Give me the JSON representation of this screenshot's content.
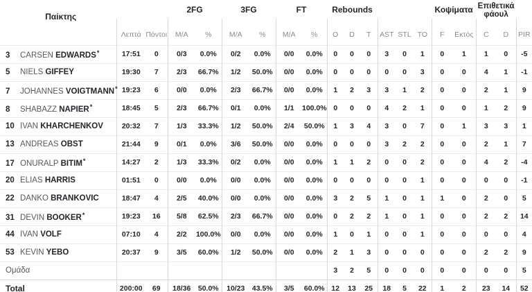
{
  "colors": {
    "background": "#ffffff",
    "text_primary": "#232529",
    "text_secondary": "#85888c",
    "divider": "#d7d8da",
    "row_separator": "#ececee"
  },
  "table": {
    "player_header": "Παίκτης",
    "group_headers": {
      "fg2": "2FG",
      "fg3": "3FG",
      "ft": "FT",
      "rebounds": "Rebounds",
      "blocks": "Κοψίματα",
      "offensive_fouls": "Επιθετικά φάουλ"
    },
    "stat_columns": [
      "Λεπτά",
      "Πόντοι",
      "M/A",
      "%",
      "M/A",
      "%",
      "M/A",
      "%",
      "O",
      "D",
      "T",
      "AST",
      "STL",
      "TO",
      "F",
      "Εκτός",
      "C",
      "D",
      "PIR"
    ],
    "players": [
      {
        "number": "3",
        "first_name": "CARSEN",
        "last_name": "EDWARDS",
        "starter": true,
        "stats": [
          "17:51",
          "0",
          "0/3",
          "0.0%",
          "0/2",
          "0.0%",
          "0/0",
          "0.0%",
          "0",
          "0",
          "0",
          "3",
          "0",
          "1",
          "0",
          "1",
          "1",
          "0",
          "-5"
        ]
      },
      {
        "number": "5",
        "first_name": "NIELS",
        "last_name": "GIFFEY",
        "starter": false,
        "stats": [
          "19:30",
          "7",
          "2/3",
          "66.7%",
          "1/2",
          "50.0%",
          "0/0",
          "0.0%",
          "0",
          "0",
          "0",
          "0",
          "0",
          "3",
          "0",
          "0",
          "4",
          "1",
          "-1"
        ]
      },
      {
        "number": "7",
        "first_name": "JOHANNES",
        "last_name": "VOIGTMANN",
        "starter": true,
        "stats": [
          "19:23",
          "6",
          "0/0",
          "0.0%",
          "2/3",
          "66.7%",
          "0/0",
          "0.0%",
          "1",
          "2",
          "3",
          "3",
          "1",
          "2",
          "0",
          "0",
          "2",
          "1",
          "9"
        ]
      },
      {
        "number": "8",
        "first_name": "SHABAZZ",
        "last_name": "NAPIER",
        "starter": true,
        "stats": [
          "18:45",
          "5",
          "2/3",
          "66.7%",
          "0/1",
          "0.0%",
          "1/1",
          "100.0%",
          "0",
          "0",
          "0",
          "4",
          "2",
          "1",
          "0",
          "0",
          "1",
          "2",
          "9"
        ]
      },
      {
        "number": "10",
        "first_name": "IVAN",
        "last_name": "KHARCHENKOV",
        "starter": false,
        "stats": [
          "20:32",
          "7",
          "1/3",
          "33.3%",
          "1/2",
          "50.0%",
          "2/4",
          "50.0%",
          "1",
          "3",
          "4",
          "3",
          "0",
          "7",
          "0",
          "1",
          "3",
          "3",
          "1"
        ]
      },
      {
        "number": "13",
        "first_name": "ANDREAS",
        "last_name": "OBST",
        "starter": false,
        "stats": [
          "21:44",
          "9",
          "0/1",
          "0.0%",
          "3/6",
          "50.0%",
          "0/0",
          "0.0%",
          "0",
          "0",
          "0",
          "3",
          "2",
          "2",
          "0",
          "0",
          "2",
          "1",
          "7"
        ]
      },
      {
        "number": "17",
        "first_name": "ONURALP",
        "last_name": "BITIM",
        "starter": true,
        "stats": [
          "14:27",
          "2",
          "1/3",
          "33.3%",
          "0/2",
          "0.0%",
          "0/0",
          "0.0%",
          "1",
          "1",
          "2",
          "0",
          "0",
          "2",
          "0",
          "0",
          "4",
          "2",
          "-4"
        ]
      },
      {
        "number": "20",
        "first_name": "ELIAS",
        "last_name": "HARRIS",
        "starter": false,
        "stats": [
          "01:51",
          "0",
          "0/0",
          "0.0%",
          "0/0",
          "0.0%",
          "0/0",
          "0.0%",
          "0",
          "0",
          "0",
          "0",
          "0",
          "1",
          "0",
          "0",
          "0",
          "0",
          "-1"
        ]
      },
      {
        "number": "22",
        "first_name": "DANKO",
        "last_name": "BRANKOVIC",
        "starter": false,
        "stats": [
          "18:47",
          "4",
          "2/5",
          "40.0%",
          "0/0",
          "0.0%",
          "0/0",
          "0.0%",
          "3",
          "2",
          "5",
          "1",
          "0",
          "1",
          "1",
          "0",
          "2",
          "0",
          "5"
        ]
      },
      {
        "number": "31",
        "first_name": "DEVIN",
        "last_name": "BOOKER",
        "starter": true,
        "stats": [
          "19:23",
          "16",
          "5/8",
          "62.5%",
          "2/3",
          "66.7%",
          "0/0",
          "0.0%",
          "0",
          "2",
          "2",
          "1",
          "0",
          "1",
          "0",
          "0",
          "2",
          "2",
          "14"
        ]
      },
      {
        "number": "44",
        "first_name": "IVAN",
        "last_name": "VOLF",
        "starter": false,
        "stats": [
          "07:10",
          "4",
          "2/2",
          "100.0%",
          "0/0",
          "0.0%",
          "0/0",
          "0.0%",
          "1",
          "0",
          "1",
          "0",
          "0",
          "1",
          "0",
          "0",
          "0",
          "0",
          "4"
        ]
      },
      {
        "number": "53",
        "first_name": "KEVIN",
        "last_name": "YEBO",
        "starter": false,
        "stats": [
          "20:37",
          "9",
          "3/5",
          "60.0%",
          "1/2",
          "50.0%",
          "0/0",
          "0.0%",
          "2",
          "1",
          "3",
          "0",
          "0",
          "0",
          "0",
          "0",
          "2",
          "2",
          "9"
        ]
      }
    ],
    "team_row": {
      "label": "Ομάδα",
      "stats": [
        "",
        "",
        "",
        "",
        "",
        "",
        "",
        "",
        "3",
        "2",
        "5",
        "0",
        "0",
        "0",
        "0",
        "0",
        "0",
        "0",
        "5"
      ]
    },
    "total_row": {
      "label": "Total",
      "stats": [
        "200:00",
        "69",
        "18/36",
        "50.0%",
        "10/23",
        "43.5%",
        "3/5",
        "60.0%",
        "12",
        "13",
        "25",
        "18",
        "5",
        "22",
        "1",
        "2",
        "23",
        "14",
        "52"
      ]
    }
  }
}
